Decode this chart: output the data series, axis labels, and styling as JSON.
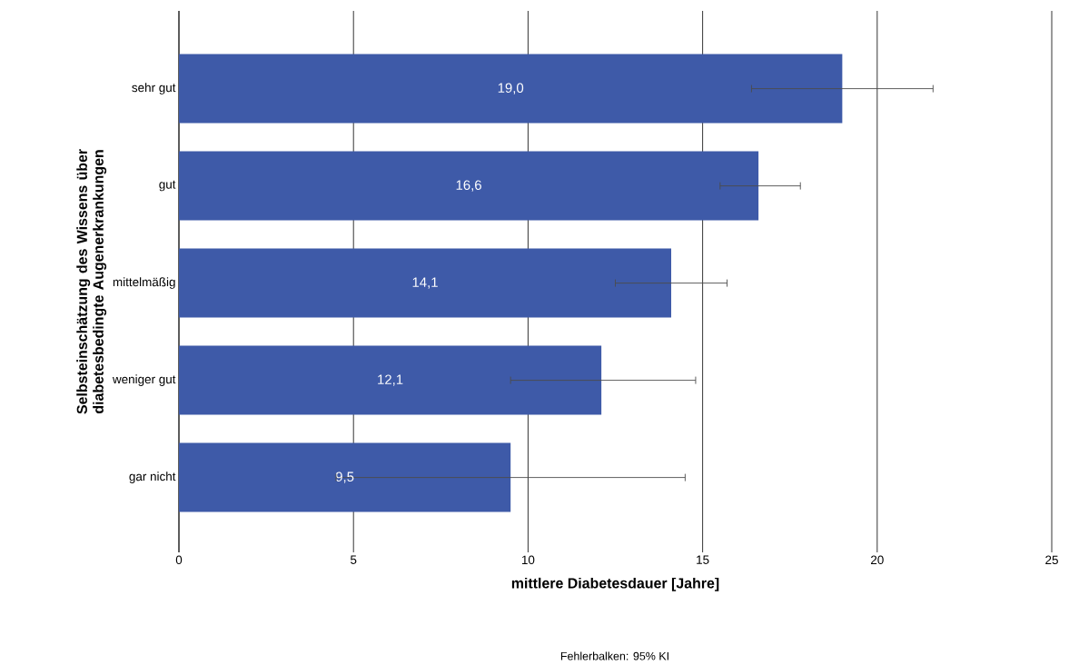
{
  "chart_data": {
    "type": "bar",
    "orientation": "horizontal",
    "xlabel": "mittlere Diabetesdauer [Jahre]",
    "ylabel": "Selbsteinschätzung des Wissens über diabetesbedingte Augenerkrankungen",
    "categories": [
      "sehr gut",
      "gut",
      "mittelmäßig",
      "weniger gut",
      "gar nicht"
    ],
    "values": [
      19.0,
      16.6,
      14.1,
      12.1,
      9.5
    ],
    "value_labels": [
      "19,0",
      "16,6",
      "14,1",
      "12,1",
      "9,5"
    ],
    "errors": [
      [
        16.4,
        21.6
      ],
      [
        15.5,
        17.8
      ],
      [
        12.5,
        15.7
      ],
      [
        9.5,
        14.8
      ],
      [
        4.5,
        14.5
      ]
    ],
    "color": "#3e5aa8",
    "xlim": [
      0,
      25
    ],
    "xticks": [
      0,
      5,
      10,
      15,
      20,
      25
    ],
    "grid": "x",
    "annotations": [
      "Fehlerbalken: 95% KI"
    ]
  }
}
